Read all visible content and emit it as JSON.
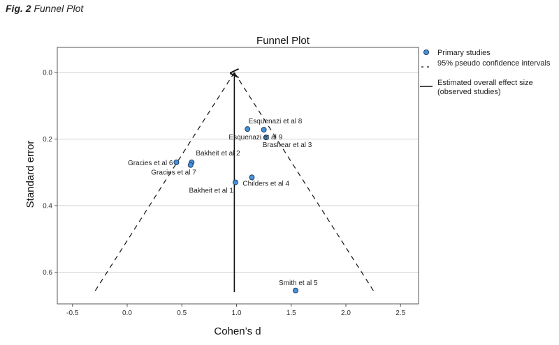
{
  "figure": {
    "caption_bold": "Fig. 2",
    "caption_text": "Funnel Plot"
  },
  "chart_data": {
    "type": "scatter",
    "title": "Funnel Plot",
    "xlabel": "Cohen’s d",
    "ylabel": "Standard error",
    "xlim": [
      -0.65,
      2.7
    ],
    "ylim": [
      0.0,
      0.7
    ],
    "y_reversed": true,
    "x_ticks": [
      -0.5,
      0.0,
      0.5,
      1.0,
      1.5,
      2.0,
      2.5
    ],
    "x_tick_labels": [
      "-0.5",
      "0.0",
      "0.5",
      "1.0",
      "1.5",
      "2.0",
      "2.5"
    ],
    "y_ticks": [
      0.0,
      0.2,
      0.4,
      0.6
    ],
    "y_tick_labels": [
      "0.0",
      "0.2",
      "0.4",
      "0.6"
    ],
    "grid": "horizontal",
    "legend_position": "right",
    "legend": [
      {
        "label": "Primary studies",
        "kind": "marker"
      },
      {
        "label": "95% pseudo confidence intervals",
        "kind": "dashed"
      },
      {
        "label": "Estimated overall effect size (observed studies)",
        "kind": "solid"
      }
    ],
    "overall_effect": 0.98,
    "ci_apex": [
      0.98,
      0.0
    ],
    "ci_lines": [
      {
        "from": [
          0.98,
          0.0
        ],
        "to": [
          -0.3,
          0.66
        ]
      },
      {
        "from": [
          0.98,
          0.0
        ],
        "to": [
          2.26,
          0.66
        ]
      }
    ],
    "effect_line": {
      "x": 0.98,
      "y_from": 0.66,
      "y_to": 0.0
    },
    "points": [
      {
        "label": "Bakheit et al 1",
        "x": 0.99,
        "y": 0.33
      },
      {
        "label": "Bakheit et al 2",
        "x": 0.59,
        "y": 0.27
      },
      {
        "label": "Brashear et al 3",
        "x": 1.27,
        "y": 0.195
      },
      {
        "label": "Childers et al 4",
        "x": 1.14,
        "y": 0.315
      },
      {
        "label": "Smith et al 5",
        "x": 1.54,
        "y": 0.655
      },
      {
        "label": "Gracies et al 6",
        "x": 0.45,
        "y": 0.27
      },
      {
        "label": "Gracies et al 7",
        "x": 0.58,
        "y": 0.278
      },
      {
        "label": "Esquenazi et al 8",
        "x": 1.25,
        "y": 0.172
      },
      {
        "label": "Esquenazi et al 9",
        "x": 1.1,
        "y": 0.17
      }
    ],
    "colors": {
      "marker_fill": "#4a90d9",
      "marker_stroke": "#1a3f6b",
      "grid": "#cfcfcf",
      "axis": "#555555",
      "line": "#111111"
    }
  }
}
